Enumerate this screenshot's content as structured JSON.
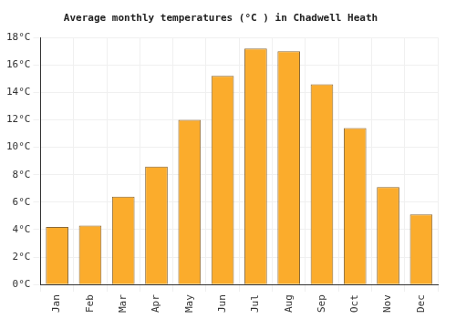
{
  "chart_data": {
    "type": "bar",
    "title": "Average monthly temperatures (°C ) in Chadwell Heath",
    "categories": [
      "Jan",
      "Feb",
      "Mar",
      "Apr",
      "May",
      "Jun",
      "Jul",
      "Aug",
      "Sep",
      "Oct",
      "Nov",
      "Dec"
    ],
    "values": [
      4.2,
      4.3,
      6.4,
      8.6,
      12.0,
      15.2,
      17.2,
      17.0,
      14.6,
      11.4,
      7.1,
      5.1
    ],
    "color": "#fbac2c",
    "ylim": [
      0,
      18
    ],
    "yticks": [
      {
        "value": 0,
        "label": "0°C"
      },
      {
        "value": 2,
        "label": "2°C"
      },
      {
        "value": 4,
        "label": "4°C"
      },
      {
        "value": 6,
        "label": "6°C"
      },
      {
        "value": 8,
        "label": "8°C"
      },
      {
        "value": 10,
        "label": "10°C"
      },
      {
        "value": 12,
        "label": "12°C"
      },
      {
        "value": 14,
        "label": "14°C"
      },
      {
        "value": 16,
        "label": "16°C"
      },
      {
        "value": 18,
        "label": "18°C"
      }
    ],
    "grid": true
  }
}
